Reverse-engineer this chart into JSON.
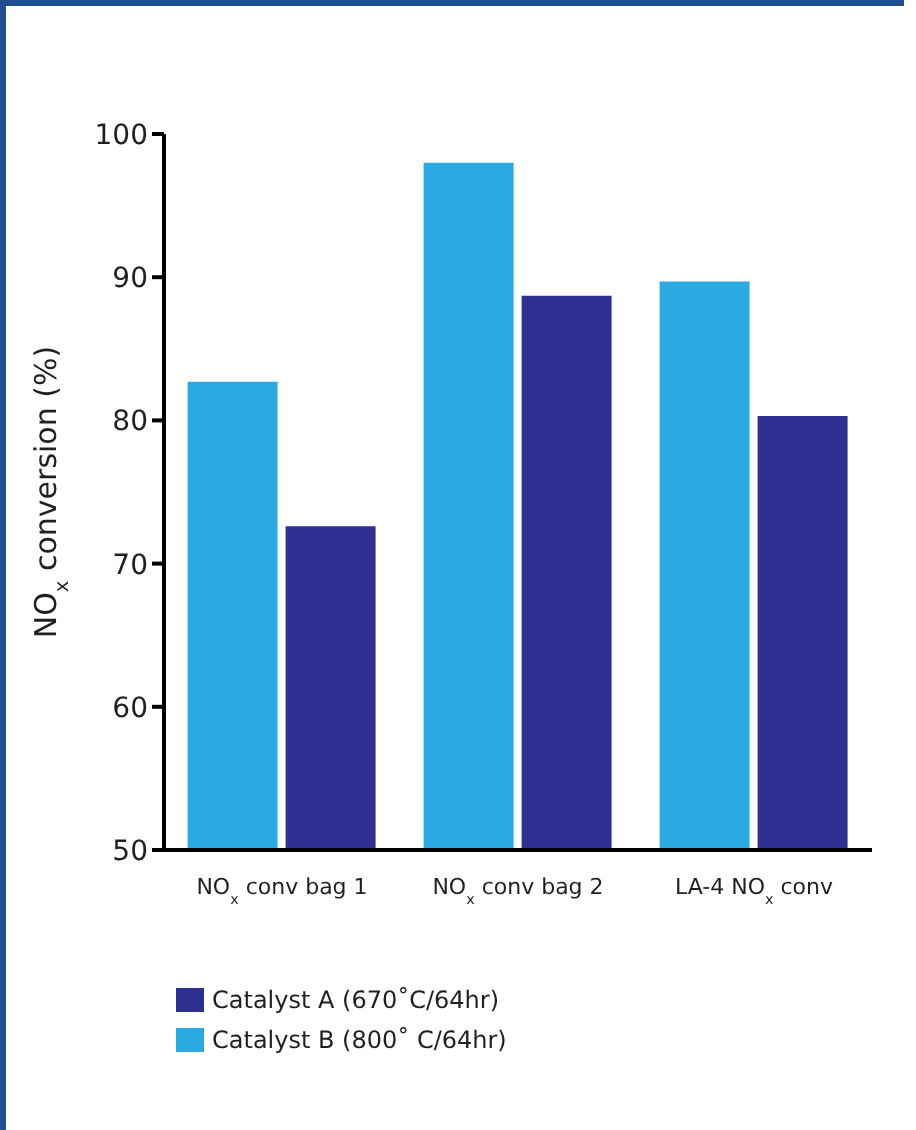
{
  "chart_data": {
    "type": "bar",
    "ylabel": "NO$_{x}$ conversion (%)",
    "categories": [
      "NO$_{x}$ conv bag 1",
      "NO$_{x}$ conv bag 2",
      "LA-4 NO$_{x}$ conv"
    ],
    "series": [
      {
        "name": "Catalyst B (800˚ C/64hr)",
        "color": "#29a9e0",
        "values": [
          82.7,
          98.0,
          89.7
        ]
      },
      {
        "name": "Catalyst A (670˚C/64hr)",
        "color": "#2e3192",
        "values": [
          72.6,
          88.7,
          80.3
        ]
      }
    ],
    "ylim": [
      50,
      100
    ],
    "yticks": [
      50,
      60,
      70,
      80,
      90,
      100
    ],
    "legend": "bottom left"
  }
}
